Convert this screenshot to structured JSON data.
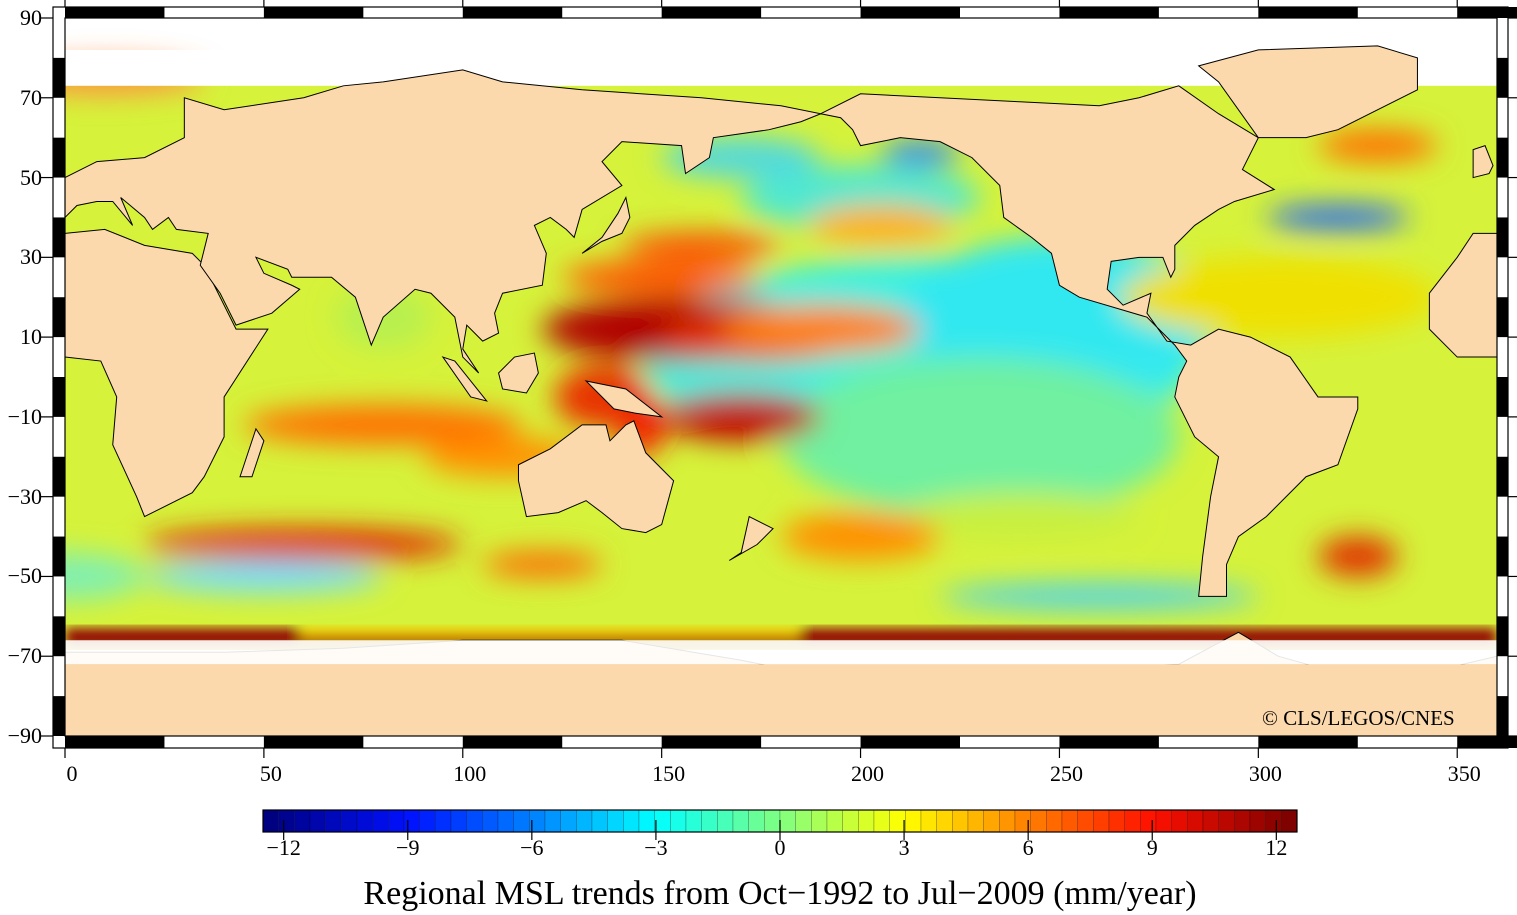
{
  "title": "Regional MSL trends from Oct−1992 to Jul−2009 (mm/year)",
  "copyright": "© CLS/LEGOS/CNES",
  "axes": {
    "lat_ticks": [
      "90",
      "70",
      "50",
      "30",
      "10",
      "−10",
      "−30",
      "−50",
      "−70",
      "−90"
    ],
    "lat_values": [
      90,
      70,
      50,
      30,
      10,
      -10,
      -30,
      -50,
      -70,
      -90
    ],
    "lon_ticks": [
      "0",
      "50",
      "100",
      "150",
      "200",
      "250",
      "300",
      "350"
    ],
    "lon_values": [
      0,
      50,
      100,
      150,
      200,
      250,
      300,
      350
    ]
  },
  "colorbar": {
    "unit": "mm/year",
    "range": [
      -12.5,
      12.5
    ],
    "ticks": [
      "−12",
      "−9",
      "−6",
      "−3",
      "0",
      "3",
      "6",
      "9",
      "12"
    ],
    "tick_values": [
      -12,
      -9,
      -6,
      -3,
      0,
      3,
      6,
      9,
      12
    ],
    "stops": [
      {
        "v": -12.5,
        "c": "#00007a"
      },
      {
        "v": -9,
        "c": "#0010ff"
      },
      {
        "v": -6,
        "c": "#0080ff"
      },
      {
        "v": -3,
        "c": "#00ffff"
      },
      {
        "v": 0,
        "c": "#80ff80"
      },
      {
        "v": 3,
        "c": "#ffff00"
      },
      {
        "v": 6,
        "c": "#ff8000"
      },
      {
        "v": 9,
        "c": "#ff1000"
      },
      {
        "v": 12.5,
        "c": "#780000"
      }
    ]
  },
  "colors": {
    "land": "#fcd9ad",
    "ice": "#ffffff",
    "ocean_base": "#d6f23a"
  }
}
